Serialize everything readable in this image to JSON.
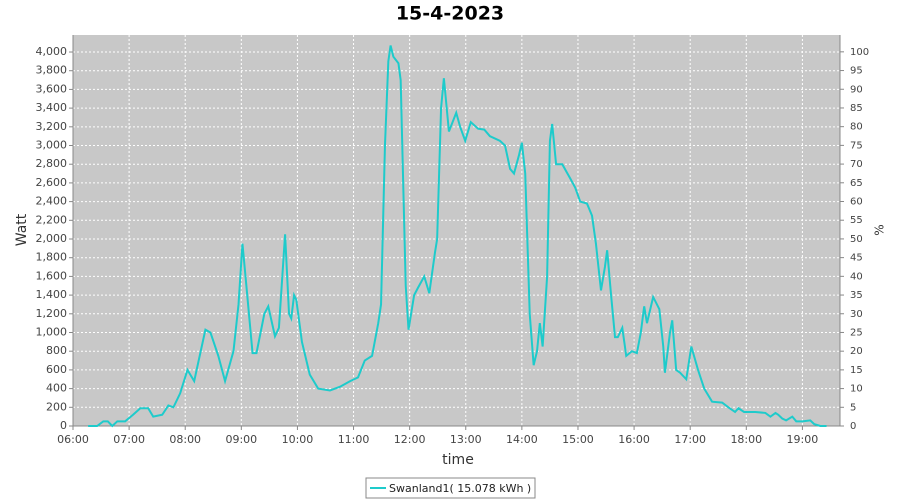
{
  "chart_data": {
    "type": "line",
    "title": "15-4-2023",
    "xlabel": "time",
    "ylabel": "Watt",
    "y2label": "%",
    "x": [
      6.27,
      6.43,
      6.54,
      6.62,
      6.7,
      6.79,
      6.93,
      7.07,
      7.2,
      7.34,
      7.43,
      7.59,
      7.7,
      7.79,
      7.91,
      8.04,
      8.16,
      8.36,
      8.45,
      8.59,
      8.71,
      8.86,
      8.95,
      9.02,
      9.09,
      9.2,
      9.27,
      9.41,
      9.48,
      9.6,
      9.67,
      9.78,
      9.85,
      9.89,
      9.94,
      9.98,
      10.08,
      10.22,
      10.37,
      10.58,
      10.76,
      10.94,
      11.08,
      11.2,
      11.33,
      11.44,
      11.49,
      11.56,
      11.62,
      11.66,
      11.71,
      11.8,
      11.84,
      11.93,
      11.98,
      12.08,
      12.15,
      12.26,
      12.35,
      12.45,
      12.49,
      12.56,
      12.61,
      12.7,
      12.83,
      12.9,
      12.99,
      13.09,
      13.22,
      13.33,
      13.43,
      13.61,
      13.7,
      13.79,
      13.86,
      13.95,
      14.0,
      14.06,
      14.14,
      14.21,
      14.27,
      14.32,
      14.37,
      14.45,
      14.5,
      14.54,
      14.61,
      14.72,
      14.86,
      14.95,
      15.04,
      15.16,
      15.25,
      15.32,
      15.41,
      15.48,
      15.52,
      15.59,
      15.66,
      15.71,
      15.79,
      15.86,
      15.96,
      16.05,
      16.12,
      16.18,
      16.23,
      16.34,
      16.45,
      16.52,
      16.55,
      16.64,
      16.68,
      16.75,
      16.82,
      16.93,
      17.02,
      17.14,
      17.25,
      17.39,
      17.57,
      17.68,
      17.8,
      17.86,
      17.96,
      18.16,
      18.34,
      18.43,
      18.52,
      18.57,
      18.64,
      18.71,
      18.82,
      18.89,
      19.0,
      19.14,
      19.21,
      19.32,
      19.43
    ],
    "series": [
      {
        "name": "Swanland1( 15.078 kWh )",
        "color": "#1ecbcb",
        "values": [
          0,
          0,
          50,
          50,
          0,
          50,
          50,
          120,
          190,
          190,
          100,
          120,
          220,
          200,
          350,
          600,
          480,
          1030,
          1000,
          750,
          480,
          800,
          1300,
          1950,
          1500,
          780,
          780,
          1200,
          1280,
          960,
          1050,
          2050,
          1200,
          1150,
          1400,
          1350,
          900,
          550,
          400,
          380,
          420,
          480,
          520,
          700,
          750,
          1100,
          1300,
          3000,
          3900,
          4070,
          3950,
          3880,
          3700,
          1500,
          1030,
          1400,
          1480,
          1600,
          1420,
          1850,
          2000,
          3400,
          3720,
          3150,
          3350,
          3200,
          3050,
          3250,
          3180,
          3170,
          3100,
          3050,
          3000,
          2750,
          2700,
          2900,
          3030,
          2700,
          1200,
          650,
          800,
          1100,
          850,
          1600,
          3050,
          3230,
          2800,
          2800,
          2650,
          2550,
          2400,
          2380,
          2250,
          1950,
          1450,
          1700,
          1880,
          1400,
          950,
          950,
          1050,
          750,
          800,
          780,
          1000,
          1280,
          1100,
          1380,
          1250,
          850,
          570,
          1000,
          1130,
          600,
          570,
          500,
          850,
          600,
          400,
          260,
          250,
          200,
          150,
          190,
          150,
          150,
          140,
          100,
          140,
          120,
          80,
          60,
          100,
          50,
          50,
          60,
          20,
          0,
          0
        ]
      }
    ],
    "xlim": [
      6,
      19.67
    ],
    "xticks": [
      {
        "value": 6,
        "label": "06:00"
      },
      {
        "value": 7,
        "label": "07:00"
      },
      {
        "value": 8,
        "label": "08:00"
      },
      {
        "value": 9,
        "label": "09:00"
      },
      {
        "value": 10,
        "label": "10:00"
      },
      {
        "value": 11,
        "label": "11:00"
      },
      {
        "value": 12,
        "label": "12:00"
      },
      {
        "value": 13,
        "label": "13:00"
      },
      {
        "value": 14,
        "label": "14:00"
      },
      {
        "value": 15,
        "label": "15:00"
      },
      {
        "value": 16,
        "label": "16:00"
      },
      {
        "value": 17,
        "label": "17:00"
      },
      {
        "value": 18,
        "label": "18:00"
      },
      {
        "value": 19,
        "label": "19:00"
      }
    ],
    "ylim": [
      0,
      4182
    ],
    "yticks": [
      0,
      200,
      400,
      600,
      800,
      {
        "value": 1000,
        "label": "1,000"
      },
      {
        "value": 1200,
        "label": "1,200"
      },
      {
        "value": 1400,
        "label": "1,400"
      },
      {
        "value": 1600,
        "label": "1,600"
      },
      {
        "value": 1800,
        "label": "1,800"
      },
      {
        "value": 2000,
        "label": "2,000"
      },
      {
        "value": 2200,
        "label": "2,200"
      },
      {
        "value": 2400,
        "label": "2,400"
      },
      {
        "value": 2600,
        "label": "2,600"
      },
      {
        "value": 2800,
        "label": "2,800"
      },
      {
        "value": 3000,
        "label": "3,000"
      },
      {
        "value": 3200,
        "label": "3,200"
      },
      {
        "value": 3400,
        "label": "3,400"
      },
      {
        "value": 3600,
        "label": "3,600"
      },
      {
        "value": 3800,
        "label": "3,800"
      },
      {
        "value": 4000,
        "label": "4,000"
      }
    ],
    "y2lim": [
      0,
      104.5
    ],
    "y2ticks": [
      0,
      5,
      10,
      15,
      20,
      25,
      30,
      35,
      40,
      45,
      50,
      55,
      60,
      65,
      70,
      75,
      80,
      85,
      90,
      95,
      100
    ],
    "grid": true
  }
}
